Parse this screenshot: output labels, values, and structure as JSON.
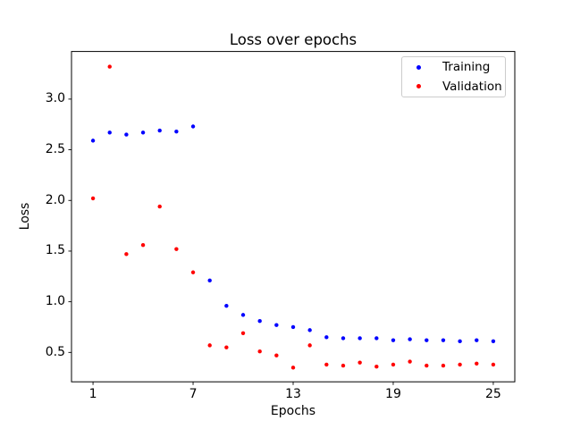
{
  "figure": {
    "title": "Loss over epochs",
    "xlabel": "Epochs",
    "ylabel": "Loss"
  },
  "legend": {
    "position": "upper right",
    "entries": [
      {
        "label": "Training",
        "color": "#0000ff"
      },
      {
        "label": "Validation",
        "color": "#ff0000"
      }
    ]
  },
  "chart_data": {
    "type": "scatter",
    "title": "Loss over epochs",
    "xlabel": "Epochs",
    "ylabel": "Loss",
    "marker": "point",
    "grid": false,
    "legend_position": "upper right",
    "x": [
      1,
      2,
      3,
      4,
      5,
      6,
      7,
      8,
      9,
      10,
      11,
      12,
      13,
      14,
      15,
      16,
      17,
      18,
      19,
      20,
      21,
      22,
      23,
      24,
      25
    ],
    "series": [
      {
        "name": "Training",
        "color": "#0000ff",
        "values": [
          2.59,
          2.67,
          2.65,
          2.67,
          2.69,
          2.68,
          2.73,
          1.21,
          0.96,
          0.87,
          0.81,
          0.77,
          0.75,
          0.72,
          0.65,
          0.64,
          0.64,
          0.64,
          0.62,
          0.63,
          0.62,
          0.62,
          0.61,
          0.62,
          0.61
        ]
      },
      {
        "name": "Validation",
        "color": "#ff0000",
        "values": [
          2.02,
          3.32,
          1.47,
          1.56,
          1.94,
          1.52,
          1.29,
          0.57,
          0.55,
          0.69,
          0.51,
          0.47,
          0.35,
          0.57,
          0.38,
          0.37,
          0.4,
          0.36,
          0.38,
          0.41,
          0.37,
          0.37,
          0.38,
          0.39,
          0.38
        ]
      }
    ],
    "xlim": [
      -0.29,
      26.29
    ],
    "ylim": [
      0.21,
      3.47
    ],
    "xticks": [
      1,
      7,
      13,
      19,
      25
    ],
    "yticks": [
      0.5,
      1.0,
      1.5,
      2.0,
      2.5,
      3.0
    ]
  }
}
